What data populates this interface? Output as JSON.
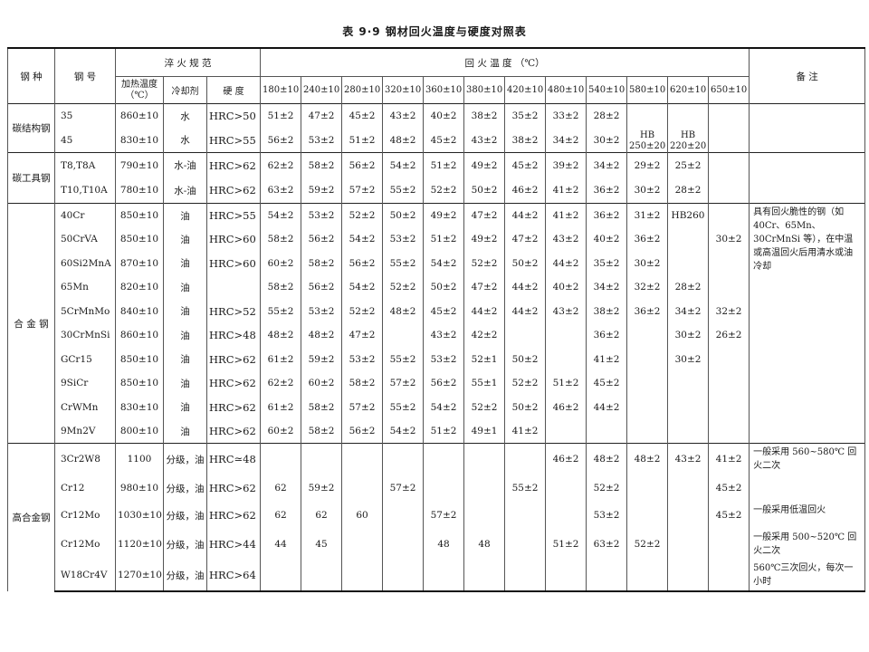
{
  "title": "表 9·9  钢材回火温度与硬度对照表",
  "header": {
    "steel_type": "钢 种",
    "grade": "钢 号",
    "quench": "淬 火 规 范",
    "heat_temp": "加热温度（℃）",
    "coolant": "冷却剂",
    "hardness": "硬 度",
    "temper": "回 火 温 度 （℃）",
    "remark": "备 注",
    "temps": [
      "180±10",
      "240±10",
      "280±10",
      "320±10",
      "360±10",
      "380±10",
      "420±10",
      "480±10",
      "540±10",
      "580±10",
      "620±10",
      "650±10"
    ]
  },
  "groups": [
    {
      "name": "碳结构钢",
      "remark": "",
      "rows": [
        {
          "grade": "35",
          "heat": "860±10",
          "coolant": "水",
          "hardness": "HRC>50",
          "temps": [
            "51±2",
            "47±2",
            "45±2",
            "43±2",
            "40±2",
            "38±2",
            "35±2",
            "33±2",
            "28±2",
            "",
            "",
            ""
          ]
        },
        {
          "grade": "45",
          "heat": "830±10",
          "coolant": "水",
          "hardness": "HRC>55",
          "temps": [
            "56±2",
            "53±2",
            "51±2",
            "48±2",
            "45±2",
            "43±2",
            "38±2",
            "34±2",
            "30±2",
            "HB 250±20",
            "HB 220±20",
            ""
          ]
        }
      ]
    },
    {
      "name": "碳工具钢",
      "remark": "",
      "rows": [
        {
          "grade": "T8,T8A",
          "heat": "790±10",
          "coolant": "水-油",
          "hardness": "HRC>62",
          "temps": [
            "62±2",
            "58±2",
            "56±2",
            "54±2",
            "51±2",
            "49±2",
            "45±2",
            "39±2",
            "34±2",
            "29±2",
            "25±2",
            ""
          ]
        },
        {
          "grade": "T10,T10A",
          "heat": "780±10",
          "coolant": "水-油",
          "hardness": "HRC>62",
          "temps": [
            "63±2",
            "59±2",
            "57±2",
            "55±2",
            "52±2",
            "50±2",
            "46±2",
            "41±2",
            "36±2",
            "30±2",
            "28±2",
            ""
          ]
        }
      ]
    },
    {
      "name": "合 金 钢",
      "remark": "具有回火脆性的钢（如40Cr、65Mn、30CrMnSi 等），在中温或高温回火后用清水或油冷却",
      "rows": [
        {
          "grade": "40Cr",
          "heat": "850±10",
          "coolant": "油",
          "hardness": "HRC>55",
          "temps": [
            "54±2",
            "53±2",
            "52±2",
            "50±2",
            "49±2",
            "47±2",
            "44±2",
            "41±2",
            "36±2",
            "31±2",
            "HB260",
            ""
          ]
        },
        {
          "grade": "50CrVA",
          "heat": "850±10",
          "coolant": "油",
          "hardness": "HRC>60",
          "temps": [
            "58±2",
            "56±2",
            "54±2",
            "53±2",
            "51±2",
            "49±2",
            "47±2",
            "43±2",
            "40±2",
            "36±2",
            "",
            "30±2"
          ]
        },
        {
          "grade": "60Si2MnA",
          "heat": "870±10",
          "coolant": "油",
          "hardness": "HRC>60",
          "temps": [
            "60±2",
            "58±2",
            "56±2",
            "55±2",
            "54±2",
            "52±2",
            "50±2",
            "44±2",
            "35±2",
            "30±2",
            "",
            ""
          ]
        },
        {
          "grade": "65Mn",
          "heat": "820±10",
          "coolant": "油",
          "hardness": "",
          "temps": [
            "58±2",
            "56±2",
            "54±2",
            "52±2",
            "50±2",
            "47±2",
            "44±2",
            "40±2",
            "34±2",
            "32±2",
            "28±2",
            ""
          ]
        },
        {
          "grade": "5CrMnMo",
          "heat": "840±10",
          "coolant": "油",
          "hardness": "HRC>52",
          "temps": [
            "55±2",
            "53±2",
            "52±2",
            "48±2",
            "45±2",
            "44±2",
            "44±2",
            "43±2",
            "38±2",
            "36±2",
            "34±2",
            "32±2"
          ]
        },
        {
          "grade": "30CrMnSi",
          "heat": "860±10",
          "coolant": "油",
          "hardness": "HRC>48",
          "temps": [
            "48±2",
            "48±2",
            "47±2",
            "",
            "43±2",
            "42±2",
            "",
            "",
            "36±2",
            "",
            "30±2",
            "26±2"
          ]
        },
        {
          "grade": "GCr15",
          "heat": "850±10",
          "coolant": "油",
          "hardness": "HRC>62",
          "temps": [
            "61±2",
            "59±2",
            "53±2",
            "55±2",
            "53±2",
            "52±1",
            "50±2",
            "",
            "41±2",
            "",
            "30±2",
            ""
          ]
        },
        {
          "grade": "9SiCr",
          "heat": "850±10",
          "coolant": "油",
          "hardness": "HRC>62",
          "temps": [
            "62±2",
            "60±2",
            "58±2",
            "57±2",
            "56±2",
            "55±1",
            "52±2",
            "51±2",
            "45±2",
            "",
            "",
            ""
          ]
        },
        {
          "grade": "CrWMn",
          "heat": "830±10",
          "coolant": "油",
          "hardness": "HRC>62",
          "temps": [
            "61±2",
            "58±2",
            "57±2",
            "55±2",
            "54±2",
            "52±2",
            "50±2",
            "46±2",
            "44±2",
            "",
            "",
            ""
          ]
        },
        {
          "grade": "9Mn2V",
          "heat": "800±10",
          "coolant": "油",
          "hardness": "HRC>62",
          "temps": [
            "60±2",
            "58±2",
            "56±2",
            "54±2",
            "51±2",
            "49±1",
            "41±2",
            "",
            "",
            "",
            "",
            ""
          ]
        }
      ]
    },
    {
      "name": "高合金钢",
      "rows": [
        {
          "grade": "3Cr2W8",
          "heat": "1100",
          "coolant": "分级，油",
          "hardness": "HRC≃48",
          "remark": "一般采用 560~580℃ 回火二次",
          "temps": [
            "",
            "",
            "",
            "",
            "",
            "",
            "",
            "46±2",
            "48±2",
            "48±2",
            "43±2",
            "41±2"
          ]
        },
        {
          "grade": "Cr12",
          "heat": "980±10",
          "coolant": "分级，油",
          "hardness": "HRC>62",
          "remark": "",
          "temps": [
            "62",
            "59±2",
            "",
            "57±2",
            "",
            "",
            "55±2",
            "",
            "52±2",
            "",
            "",
            "45±2"
          ]
        },
        {
          "grade": "Cr12Mo",
          "heat": "1030±10",
          "coolant": "分级，油",
          "hardness": "HRC>62",
          "remark": "一般采用低温回火",
          "temps": [
            "62",
            "62",
            "60",
            "",
            "57±2",
            "",
            "",
            "",
            "53±2",
            "",
            "",
            "45±2"
          ]
        },
        {
          "grade": "Cr12Mo",
          "heat": "1120±10",
          "coolant": "分级，油",
          "hardness": "HRC>44",
          "remark": "一般采用 500~520℃ 回火二次",
          "temps": [
            "44",
            "45",
            "",
            "",
            "48",
            "48",
            "",
            "51±2",
            "63±2",
            "52±2",
            "",
            ""
          ]
        },
        {
          "grade": "W18Cr4V",
          "heat": "1270±10",
          "coolant": "分级，油",
          "hardness": "HRC>64",
          "remark": "560℃三次回火，每次一小时",
          "temps": [
            "",
            "",
            "",
            "",
            "",
            "",
            "",
            "",
            "",
            "",
            "",
            ""
          ]
        }
      ]
    }
  ]
}
